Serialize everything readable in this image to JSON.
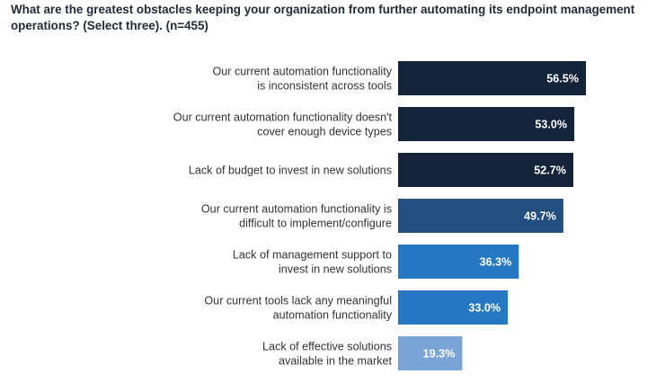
{
  "header": {
    "title": "What are the greatest obstacles keeping your organization from further automating its endpoint management operations? (Select three). (n=455)"
  },
  "colors": {
    "dark_navy": "#13243a",
    "navy_blue": "#234f80",
    "medium_blue": "#2778c2",
    "light_blue": "#7ba4d6"
  },
  "chart_data": {
    "type": "bar",
    "orientation": "horizontal",
    "title": "What are the greatest obstacles keeping your organization from further automating its endpoint management operations? (Select three). (n=455)",
    "xlim": [
      0,
      60
    ],
    "grid": false,
    "categories": [
      [
        "Our current automation functionality",
        "is inconsistent across tools"
      ],
      [
        "Our current automation functionality doesn't",
        "cover enough device types"
      ],
      [
        "Lack of budget to invest in new solutions"
      ],
      [
        "Our current automation functionality is",
        "difficult to implement/configure"
      ],
      [
        "Lack of management support to",
        "invest in new solutions"
      ],
      [
        "Our current tools lack any meaningful",
        "automation functionality"
      ],
      [
        "Lack of effective solutions",
        "available in the market"
      ]
    ],
    "values": [
      56.5,
      53.0,
      52.7,
      49.7,
      36.3,
      33.0,
      19.3
    ],
    "value_labels": [
      "56.5%",
      "53.0%",
      "52.7%",
      "49.7%",
      "36.3%",
      "33.0%",
      "19.3%"
    ],
    "bar_colors": [
      "#13243a",
      "#13243a",
      "#13243a",
      "#234f80",
      "#2778c2",
      "#2778c2",
      "#7ba4d6"
    ]
  }
}
